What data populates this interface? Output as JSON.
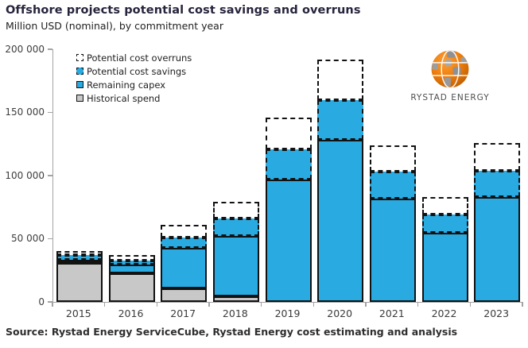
{
  "header": {
    "title": "Offshore projects potential cost savings and overruns",
    "subtitle": "Million USD (nominal), by commitment year"
  },
  "legend": [
    {
      "label": "Potential cost overruns",
      "swatch": "overruns"
    },
    {
      "label": "Potential cost savings",
      "swatch": "savings"
    },
    {
      "label": "Remaining capex",
      "swatch": "capex"
    },
    {
      "label": "Historical spend",
      "swatch": "historical"
    }
  ],
  "logo": {
    "text": "RYSTAD ENERGY"
  },
  "footer": {
    "source": "Source: Rystad Energy ServiceCube, Rystad Energy cost estimating and analysis"
  },
  "colors": {
    "blue": "#29abe2",
    "gray": "#c8c8c8",
    "white": "#ffffff",
    "outline": "#121212",
    "axis": "#a3a3a3",
    "logo_orange": "#ef7d0c"
  },
  "chart_data": {
    "type": "bar",
    "stacked": true,
    "title": "Offshore projects potential cost savings and overruns",
    "subtitle": "Million USD (nominal), by commitment year",
    "xlabel": "Commitment year",
    "ylabel": "Million USD (nominal)",
    "categories": [
      "2015",
      "2016",
      "2017",
      "2018",
      "2019",
      "2020",
      "2021",
      "2022",
      "2023"
    ],
    "series": [
      {
        "name": "Historical spend",
        "fill": "gray",
        "border": "solid",
        "values": [
          31000,
          22500,
          11000,
          4500,
          0,
          0,
          0,
          0,
          0
        ]
      },
      {
        "name": "Remaining capex",
        "fill": "blue",
        "border": "solid",
        "values": [
          2500,
          7000,
          32000,
          47500,
          97000,
          128000,
          82000,
          55000,
          83000
        ]
      },
      {
        "name": "Potential cost savings",
        "fill": "blue",
        "border": "dashed",
        "values": [
          3500,
          3000,
          8000,
          14000,
          24000,
          32000,
          21000,
          14000,
          21000
        ]
      },
      {
        "name": "Potential cost overruns",
        "fill": "white",
        "border": "dashed",
        "values": [
          3500,
          4500,
          10000,
          13000,
          25000,
          32000,
          21000,
          14000,
          22000
        ]
      }
    ],
    "totals_with_overruns": [
      40500,
      37000,
      61000,
      79000,
      146000,
      192000,
      124000,
      83000,
      126000
    ],
    "ylim": [
      0,
      200000
    ],
    "yticks": [
      0,
      50000,
      100000,
      150000,
      200000
    ],
    "grid": false,
    "legend_position": "top-left"
  }
}
